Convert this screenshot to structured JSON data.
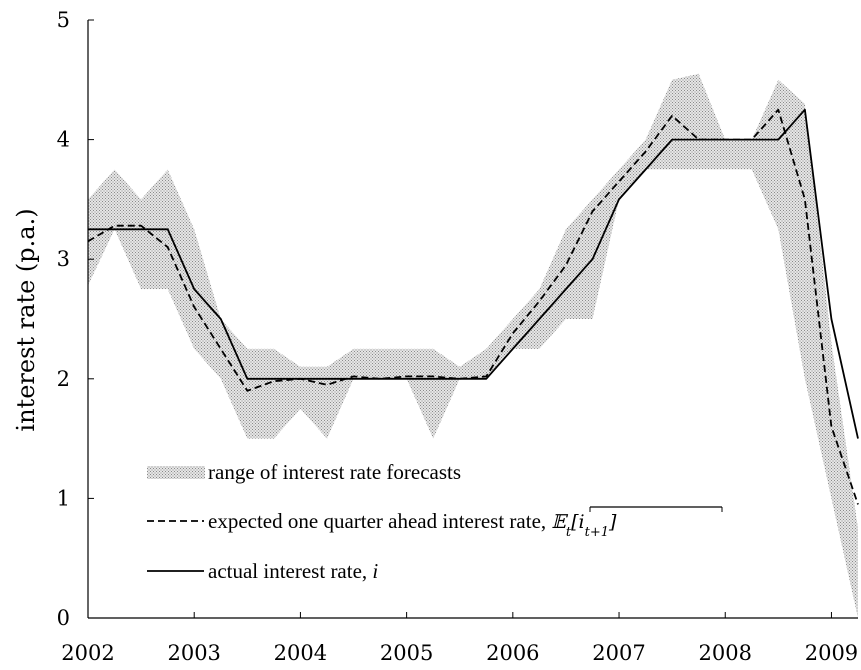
{
  "chart_data": {
    "type": "line",
    "title": "",
    "xlabel": "",
    "ylabel": "interest rate (p.a.)",
    "xlim": [
      2002,
      2009.25
    ],
    "ylim": [
      0,
      5
    ],
    "x_ticks": [
      2002,
      2003,
      2004,
      2005,
      2006,
      2007,
      2008,
      2009
    ],
    "y_ticks": [
      0,
      1,
      2,
      3,
      4,
      5
    ],
    "grid": false,
    "legend_position": "lower-left",
    "x": [
      2002,
      2002.25,
      2002.5,
      2002.75,
      2003,
      2003.25,
      2003.5,
      2003.75,
      2004,
      2004.25,
      2004.5,
      2004.75,
      2005,
      2005.25,
      2005.5,
      2005.75,
      2006,
      2006.25,
      2006.5,
      2006.75,
      2007,
      2007.25,
      2007.5,
      2007.75,
      2008,
      2008.25,
      2008.5,
      2008.75,
      2009,
      2009.25
    ],
    "series": [
      {
        "name": "range of interest rate forecasts",
        "kind": "band",
        "color": "#c4c4c4",
        "lower": [
          2.78,
          3.25,
          2.75,
          2.75,
          2.25,
          2.0,
          1.5,
          1.5,
          1.75,
          1.5,
          2.0,
          2.0,
          2.0,
          1.5,
          2.0,
          2.0,
          2.25,
          2.25,
          2.5,
          2.5,
          3.5,
          3.75,
          3.75,
          3.75,
          3.75,
          3.75,
          3.25,
          2.0,
          1.0,
          0.0
        ],
        "upper": [
          3.5,
          3.75,
          3.5,
          3.75,
          3.25,
          2.5,
          2.25,
          2.25,
          2.1,
          2.1,
          2.25,
          2.25,
          2.25,
          2.25,
          2.1,
          2.25,
          2.5,
          2.75,
          3.25,
          3.5,
          3.75,
          4.0,
          4.5,
          4.55,
          4.0,
          4.0,
          4.5,
          4.3,
          2.3,
          0.75
        ]
      },
      {
        "name": "expected one quarter ahead interest rate, ",
        "name_math": "E_t[i_{t+1}] (overlined)",
        "kind": "line",
        "style": "dashed",
        "color": "#000000",
        "values": [
          3.15,
          3.28,
          3.28,
          3.1,
          2.6,
          2.25,
          1.9,
          1.98,
          2.0,
          1.95,
          2.02,
          2.0,
          2.02,
          2.02,
          2.0,
          2.02,
          2.38,
          2.65,
          2.95,
          3.4,
          3.65,
          3.9,
          4.2,
          4.0,
          4.0,
          4.0,
          4.25,
          3.5,
          1.6,
          0.95
        ]
      },
      {
        "name": "actual interest rate, ",
        "name_math": "i",
        "kind": "line",
        "style": "solid",
        "color": "#000000",
        "values": [
          3.25,
          3.25,
          3.25,
          3.25,
          2.75,
          2.5,
          2.0,
          2.0,
          2.0,
          2.0,
          2.0,
          2.0,
          2.0,
          2.0,
          2.0,
          2.0,
          2.25,
          2.5,
          2.75,
          3.0,
          3.5,
          3.75,
          4.0,
          4.0,
          4.0,
          4.0,
          4.0,
          4.25,
          2.5,
          1.5
        ]
      }
    ]
  }
}
